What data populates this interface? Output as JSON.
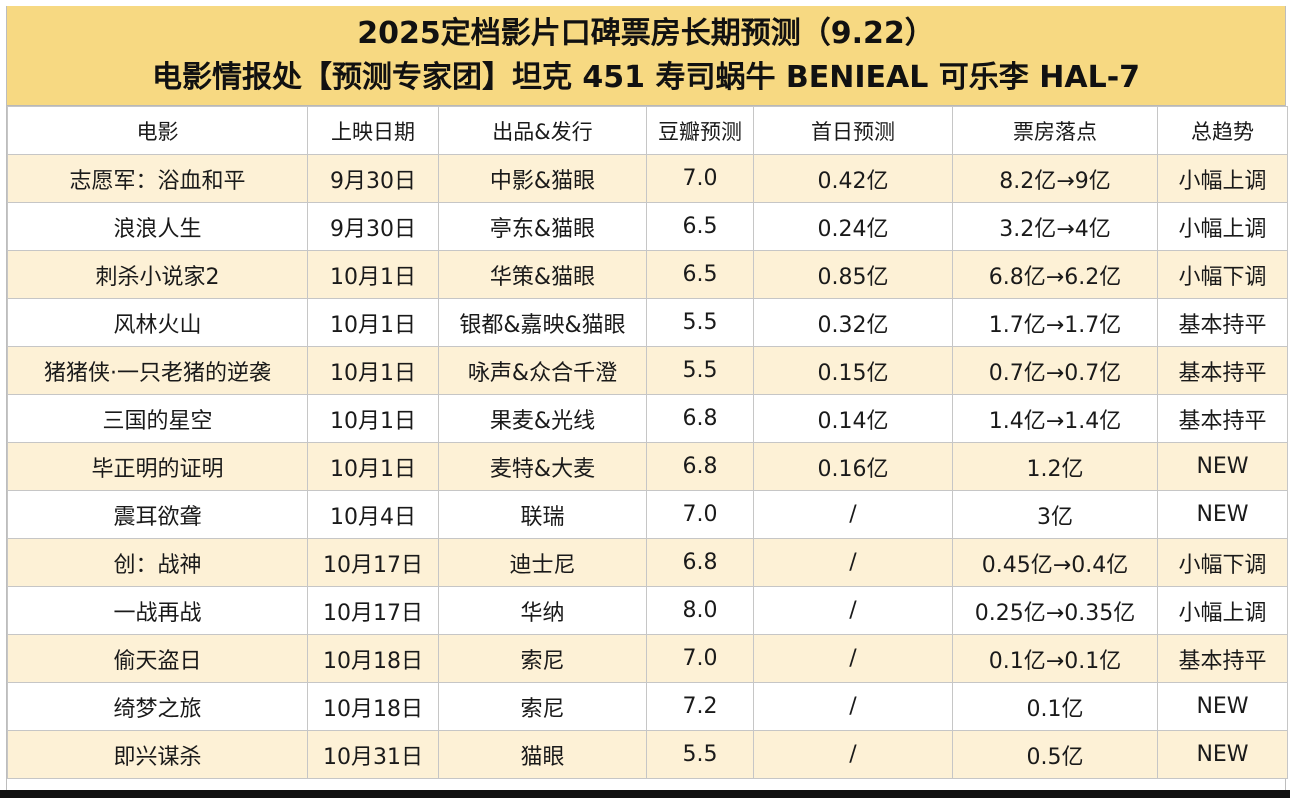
{
  "title": {
    "line1": "2025定档影片口碑票房长期预测（9.22）",
    "line2": "电影情报处【预测专家团】坦克 451 寿司蜗牛 BENIEAL 可乐李 HAL-7"
  },
  "colors": {
    "header_bg": "#f7d982",
    "row_alt_bg": "#fdf1d6",
    "row_bg": "#ffffff"
  },
  "table": {
    "columns": [
      "电影",
      "上映日期",
      "出品&发行",
      "豆瓣预测",
      "首日预测",
      "票房落点",
      "总趋势"
    ],
    "rows": [
      [
        "志愿军：浴血和平",
        "9月30日",
        "中影&猫眼",
        "7.0",
        "0.42亿",
        "8.2亿→9亿",
        "小幅上调"
      ],
      [
        "浪浪人生",
        "9月30日",
        "亭东&猫眼",
        "6.5",
        "0.24亿",
        "3.2亿→4亿",
        "小幅上调"
      ],
      [
        "刺杀小说家2",
        "10月1日",
        "华策&猫眼",
        "6.5",
        "0.85亿",
        "6.8亿→6.2亿",
        "小幅下调"
      ],
      [
        "风林火山",
        "10月1日",
        "银都&嘉映&猫眼",
        "5.5",
        "0.32亿",
        "1.7亿→1.7亿",
        "基本持平"
      ],
      [
        "猪猪侠·一只老猪的逆袭",
        "10月1日",
        "咏声&众合千澄",
        "5.5",
        "0.15亿",
        "0.7亿→0.7亿",
        "基本持平"
      ],
      [
        "三国的星空",
        "10月1日",
        "果麦&光线",
        "6.8",
        "0.14亿",
        "1.4亿→1.4亿",
        "基本持平"
      ],
      [
        "毕正明的证明",
        "10月1日",
        "麦特&大麦",
        "6.8",
        "0.16亿",
        "1.2亿",
        "NEW"
      ],
      [
        "震耳欲聋",
        "10月4日",
        "联瑞",
        "7.0",
        "/",
        "3亿",
        "NEW"
      ],
      [
        "创：战神",
        "10月17日",
        "迪士尼",
        "6.8",
        "/",
        "0.45亿→0.4亿",
        "小幅下调"
      ],
      [
        "一战再战",
        "10月17日",
        "华纳",
        "8.0",
        "/",
        "0.25亿→0.35亿",
        "小幅上调"
      ],
      [
        "偷天盗日",
        "10月18日",
        "索尼",
        "7.0",
        "/",
        "0.1亿→0.1亿",
        "基本持平"
      ],
      [
        "绮梦之旅",
        "10月18日",
        "索尼",
        "7.2",
        "/",
        "0.1亿",
        "NEW"
      ],
      [
        "即兴谋杀",
        "10月31日",
        "猫眼",
        "5.5",
        "/",
        "0.5亿",
        "NEW"
      ]
    ]
  }
}
